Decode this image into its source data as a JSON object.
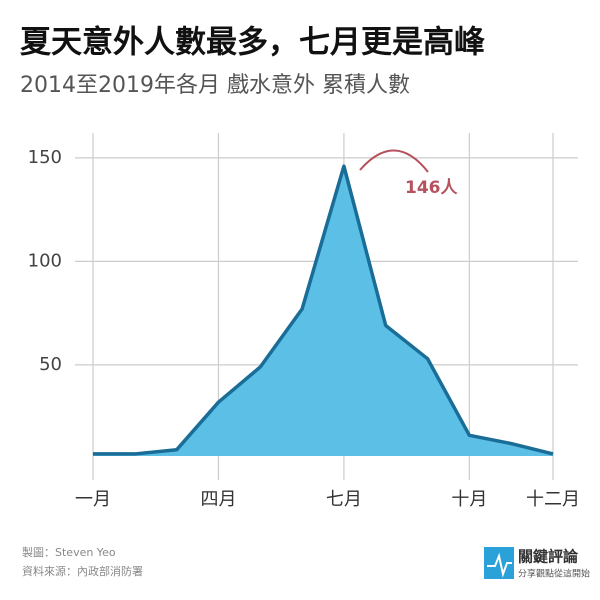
{
  "chart_data": {
    "type": "area",
    "title": "夏天意外人數最多，七月更是高峰",
    "subtitle": "2014至2019年各月 戲水意外 累積人數",
    "categories": [
      "一月",
      null,
      null,
      "四月",
      null,
      null,
      "七月",
      null,
      null,
      "十月",
      null,
      "十二月"
    ],
    "series": [
      {
        "name": "戲水意外",
        "color": "#1a6d96",
        "fill": "#5bbfe6",
        "values": [
          7,
          7,
          9,
          32,
          49,
          77,
          146,
          69,
          53,
          16,
          12,
          7
        ]
      }
    ],
    "ylim": [
      6,
      162
    ],
    "yticks": [
      50,
      100,
      150
    ],
    "grid": true,
    "annotations": [
      {
        "text": "146人",
        "category": "七月"
      }
    ],
    "footer": {
      "credit": "製圖：Steven Yeo",
      "source": "資料來源：內政部消防署",
      "brand": "關鍵評論",
      "slogan": "分享觀點從這開始"
    }
  }
}
